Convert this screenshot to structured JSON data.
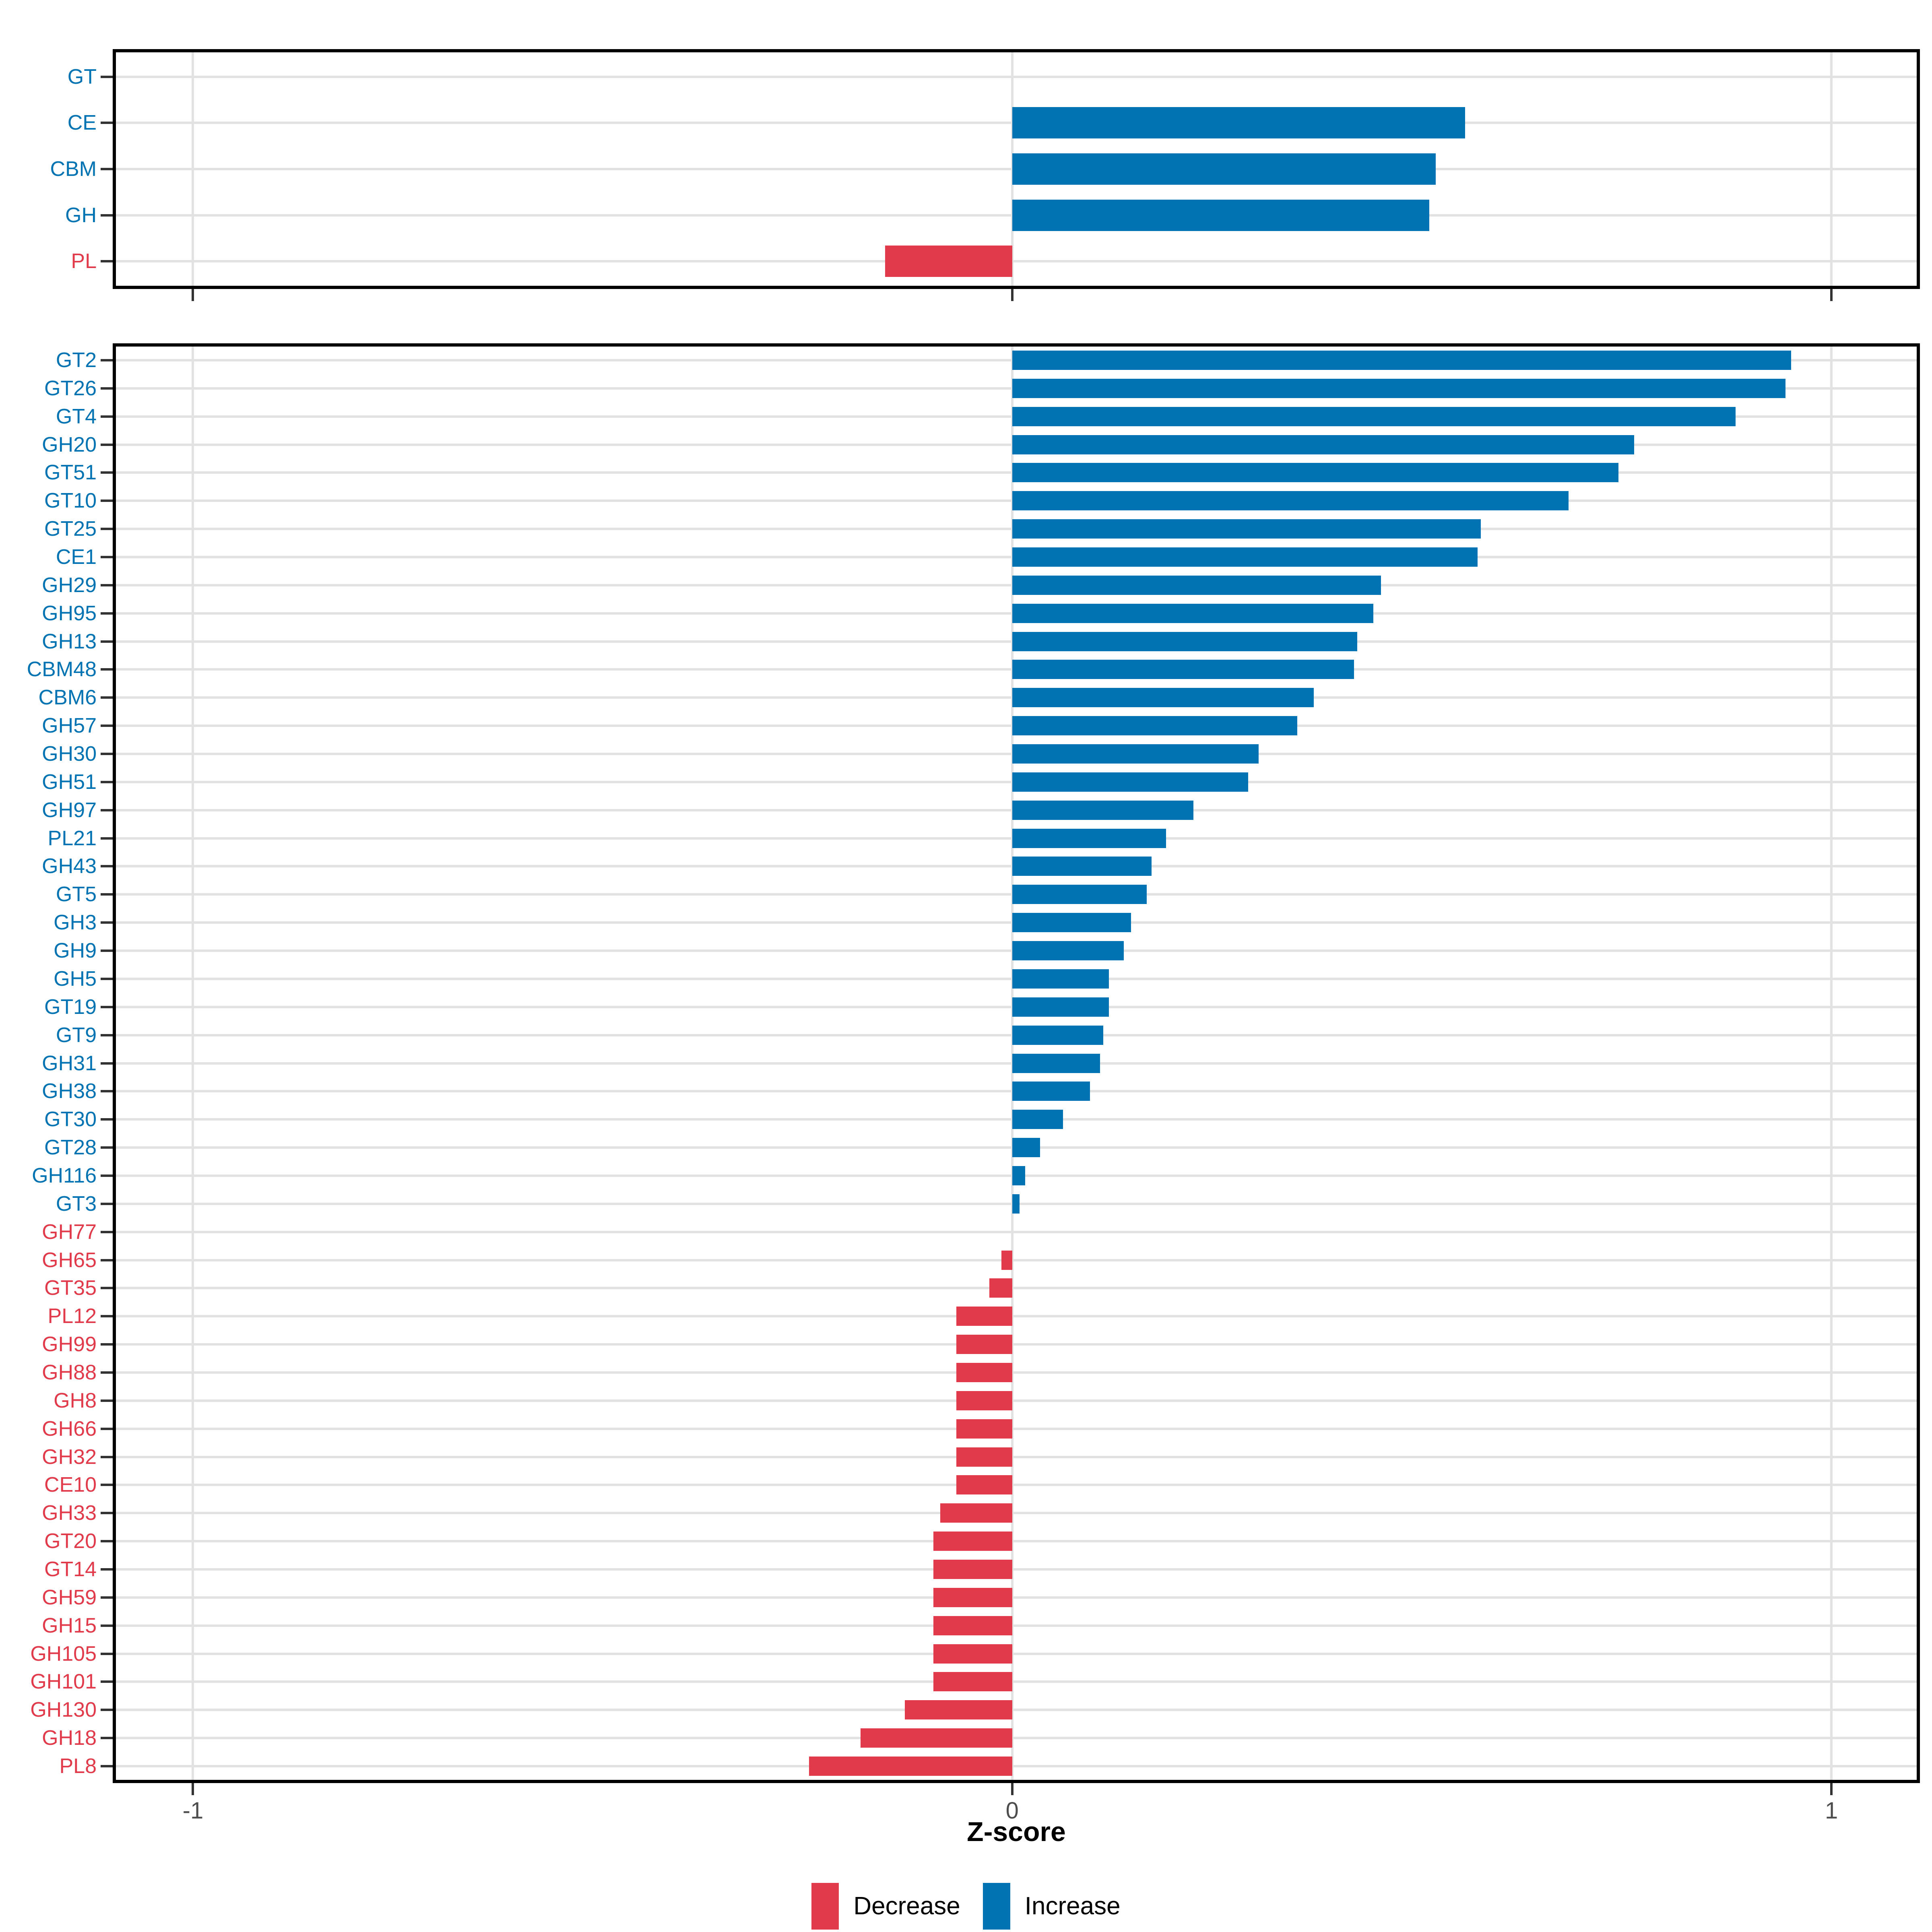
{
  "colors": {
    "increase": "#0173b2",
    "decrease": "#e13b4b",
    "grid": "#e2e2e2",
    "tick_mark": "#333333",
    "axis_text": "#4d4d4d",
    "panel_border": "#000000",
    "background": "#ffffff"
  },
  "x_axis": {
    "title": "Z-score",
    "ticks": [
      {
        "value": -1,
        "label": "-1"
      },
      {
        "value": 0,
        "label": "0"
      },
      {
        "value": 1,
        "label": "1"
      }
    ],
    "xlim": [
      -1.098,
      1.108
    ]
  },
  "legend": {
    "items": [
      {
        "label": "Decrease",
        "color": "#e13b4b"
      },
      {
        "label": "Increase",
        "color": "#0173b2"
      }
    ]
  },
  "chart_data": [
    {
      "type": "bar",
      "orientation": "horizontal",
      "panel": "top",
      "title": "",
      "xlabel": "Z-score",
      "ylabel": "",
      "xlim": [
        -1.098,
        1.108
      ],
      "grid": true,
      "color_rule": "negative=decrease(red), positive=increase(blue)",
      "categories": [
        "GT",
        "CE",
        "CBM",
        "GH",
        "PL"
      ],
      "values": [
        0.0,
        0.553,
        0.517,
        0.509,
        -0.155
      ]
    },
    {
      "type": "bar",
      "orientation": "horizontal",
      "panel": "bottom",
      "title": "",
      "xlabel": "Z-score",
      "ylabel": "",
      "xlim": [
        -1.098,
        1.108
      ],
      "grid": true,
      "color_rule": "negative=decrease(red), positive=increase(blue)",
      "categories": [
        "GT2",
        "GT26",
        "GT4",
        "GH20",
        "GT51",
        "GT10",
        "GT25",
        "CE1",
        "GH29",
        "GH95",
        "GH13",
        "CBM48",
        "CBM6",
        "GH57",
        "GH30",
        "GH51",
        "GH97",
        "PL21",
        "GH43",
        "GT5",
        "GH3",
        "GH9",
        "GH5",
        "GT19",
        "GT9",
        "GH31",
        "GH38",
        "GT30",
        "GT28",
        "GH116",
        "GT3",
        "GH77",
        "GH65",
        "GT35",
        "PL12",
        "GH99",
        "GH88",
        "GH8",
        "GH66",
        "GH32",
        "CE10",
        "GH33",
        "GT20",
        "GT14",
        "GH59",
        "GH15",
        "GH105",
        "GH101",
        "GH130",
        "GH18",
        "PL8"
      ],
      "values": [
        0.951,
        0.944,
        0.883,
        0.759,
        0.74,
        0.679,
        0.572,
        0.568,
        0.45,
        0.441,
        0.421,
        0.417,
        0.368,
        0.348,
        0.301,
        0.288,
        0.221,
        0.188,
        0.17,
        0.164,
        0.145,
        0.136,
        0.118,
        0.118,
        0.111,
        0.107,
        0.095,
        0.062,
        0.034,
        0.016,
        0.009,
        -0.001,
        -0.013,
        -0.028,
        -0.068,
        -0.068,
        -0.068,
        -0.068,
        -0.068,
        -0.068,
        -0.068,
        -0.088,
        -0.096,
        -0.096,
        -0.096,
        -0.096,
        -0.096,
        -0.096,
        -0.131,
        -0.185,
        -0.248
      ]
    }
  ]
}
